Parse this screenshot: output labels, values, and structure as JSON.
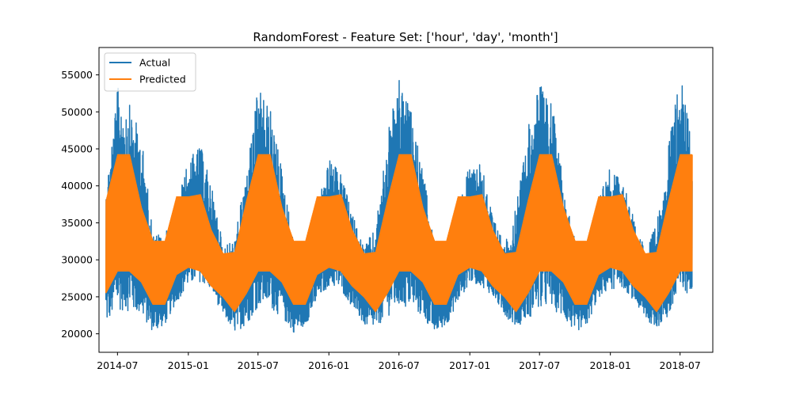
{
  "chart_data": {
    "type": "line",
    "title": "RandomForest - Feature Set: ['hour', 'day', 'month']",
    "xlabel": "",
    "ylabel": "",
    "xlim": [
      "2014-05-14",
      "2018-09-24"
    ],
    "ylim": [
      17500,
      58700
    ],
    "x_ticks": [
      "2014-07",
      "2015-01",
      "2015-07",
      "2016-01",
      "2016-07",
      "2017-01",
      "2017-07",
      "2018-01",
      "2018-07"
    ],
    "y_ticks": [
      20000,
      25000,
      30000,
      35000,
      40000,
      45000,
      50000,
      55000
    ],
    "x_tick_labels": [
      "2014-07",
      "2015-01",
      "2015-07",
      "2016-01",
      "2016-07",
      "2017-01",
      "2017-07",
      "2018-01",
      "2018-07"
    ],
    "y_tick_labels": [
      "20000",
      "25000",
      "30000",
      "35000",
      "40000",
      "45000",
      "50000",
      "55000"
    ],
    "legend_position": "top-left",
    "grid": false,
    "series": [
      {
        "name": "Actual",
        "color": "#1f77b4",
        "x": [
          "2014-06-01",
          "2014-07-01",
          "2014-08-01",
          "2014-09-01",
          "2014-10-01",
          "2014-11-01",
          "2014-12-01",
          "2015-01-01",
          "2015-02-01",
          "2015-03-01",
          "2015-04-01",
          "2015-05-01",
          "2015-06-01",
          "2015-07-01",
          "2015-08-01",
          "2015-09-01",
          "2015-10-01",
          "2015-11-01",
          "2015-12-01",
          "2016-01-01",
          "2016-02-01",
          "2016-03-01",
          "2016-04-01",
          "2016-05-01",
          "2016-06-01",
          "2016-07-01",
          "2016-08-01",
          "2016-09-01",
          "2016-10-01",
          "2016-11-01",
          "2016-12-01",
          "2017-01-01",
          "2017-02-01",
          "2017-03-01",
          "2017-04-01",
          "2017-05-01",
          "2017-06-01",
          "2017-07-01",
          "2017-08-01",
          "2017-09-01",
          "2017-10-01",
          "2017-11-01",
          "2017-12-01",
          "2018-01-01",
          "2018-02-01",
          "2018-03-01",
          "2018-04-01",
          "2018-05-01",
          "2018-06-01",
          "2018-07-01",
          "2018-08-01"
        ],
        "max": [
          41500,
          55000,
          52500,
          48000,
          34500,
          34000,
          38500,
          44500,
          46500,
          41000,
          32500,
          33500,
          43500,
          55000,
          52000,
          43500,
          33000,
          33000,
          38500,
          44500,
          42500,
          37000,
          32500,
          35000,
          48500,
          56000,
          51500,
          43000,
          33000,
          33000,
          38000,
          44000,
          44500,
          36500,
          32500,
          38000,
          50000,
          55500,
          53000,
          42000,
          33000,
          32500,
          40000,
          43500,
          41500,
          36500,
          32000,
          35500,
          47500,
          56500,
          49000
        ],
        "min": [
          20000,
          21500,
          21500,
          21000,
          19500,
          20500,
          23500,
          25500,
          26000,
          25000,
          22000,
          19500,
          20000,
          22000,
          22000,
          21000,
          19500,
          20500,
          23500,
          25500,
          25000,
          23000,
          20500,
          20000,
          21000,
          21500,
          22000,
          21000,
          19500,
          20500,
          23500,
          26000,
          25500,
          24500,
          22000,
          20000,
          20500,
          21500,
          22000,
          21000,
          19500,
          20500,
          24000,
          25000,
          25500,
          24000,
          21500,
          20000,
          20500,
          22500,
          25000
        ]
      },
      {
        "name": "Predicted",
        "color": "#ff7f0e",
        "x": [
          "2014-06-01",
          "2014-07-01",
          "2014-08-01",
          "2014-09-01",
          "2014-10-01",
          "2014-11-01",
          "2014-12-01",
          "2015-01-01",
          "2015-02-01",
          "2015-03-01",
          "2015-04-01",
          "2015-05-01",
          "2015-06-01",
          "2015-07-01",
          "2015-08-01",
          "2015-09-01",
          "2015-10-01",
          "2015-11-01",
          "2015-12-01",
          "2016-01-01",
          "2016-02-01",
          "2016-03-01",
          "2016-04-01",
          "2016-05-01",
          "2016-06-01",
          "2016-07-01",
          "2016-08-01",
          "2016-09-01",
          "2016-10-01",
          "2016-11-01",
          "2016-12-01",
          "2017-01-01",
          "2017-02-01",
          "2017-03-01",
          "2017-04-01",
          "2017-05-01",
          "2017-06-01",
          "2017-07-01",
          "2017-08-01",
          "2017-09-01",
          "2017-10-01",
          "2017-11-01",
          "2017-12-01",
          "2018-01-01",
          "2018-02-01",
          "2018-03-01",
          "2018-04-01",
          "2018-05-01",
          "2018-06-01",
          "2018-07-01",
          "2018-08-01"
        ],
        "max": [
          38000,
          44200,
          44200,
          37000,
          32500,
          32500,
          38500,
          38500,
          38800,
          34000,
          30800,
          31000,
          38000,
          44200,
          44200,
          37000,
          32500,
          32500,
          38500,
          38500,
          38800,
          34000,
          30800,
          31000,
          38000,
          44200,
          44200,
          37000,
          32500,
          32500,
          38500,
          38500,
          38800,
          34000,
          30800,
          31000,
          38000,
          44200,
          44200,
          37000,
          32500,
          32500,
          38500,
          38500,
          38800,
          34000,
          30800,
          31000,
          38000,
          44200,
          44200
        ],
        "min": [
          25500,
          28500,
          28500,
          27000,
          24000,
          24000,
          28000,
          29000,
          28500,
          26500,
          25000,
          23000,
          25500,
          28500,
          28500,
          27000,
          24000,
          24000,
          28000,
          29000,
          28500,
          26500,
          25000,
          23000,
          25500,
          28500,
          28500,
          27000,
          24000,
          24000,
          28000,
          29000,
          28500,
          26500,
          25000,
          23000,
          25500,
          28500,
          28500,
          27000,
          24000,
          24000,
          28000,
          29000,
          28500,
          26500,
          25000,
          23000,
          25500,
          28500,
          28500
        ]
      }
    ]
  }
}
